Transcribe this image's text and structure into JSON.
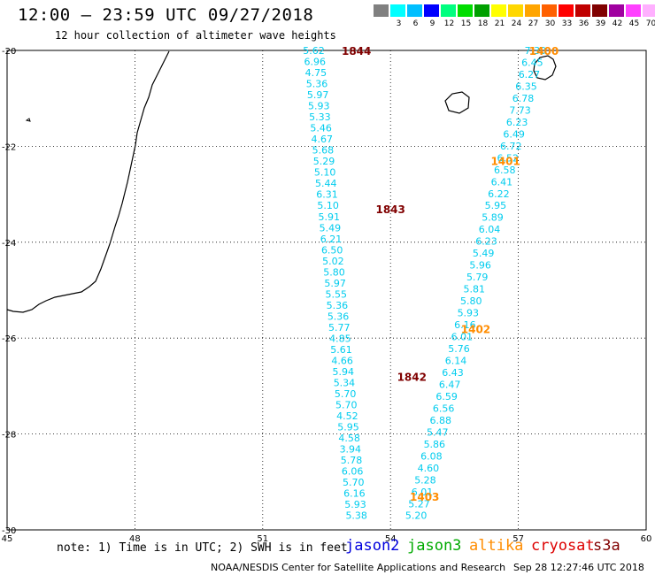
{
  "header": {
    "title": "12:00 – 23:59 UTC 09/27/2018",
    "subtitle": "12 hour collection of altimeter wave heights"
  },
  "legend": {
    "unit": "(ft)",
    "items": [
      {
        "label": "",
        "color": "#808080"
      },
      {
        "label": "3",
        "color": "#00ffff"
      },
      {
        "label": "6",
        "color": "#00bfff"
      },
      {
        "label": "9",
        "color": "#0000ff"
      },
      {
        "label": "12",
        "color": "#00ff7f"
      },
      {
        "label": "15",
        "color": "#00dd00"
      },
      {
        "label": "18",
        "color": "#00a000"
      },
      {
        "label": "21",
        "color": "#ffff00"
      },
      {
        "label": "24",
        "color": "#ffd700"
      },
      {
        "label": "27",
        "color": "#ffa500"
      },
      {
        "label": "30",
        "color": "#ff6000"
      },
      {
        "label": "33",
        "color": "#ff0000"
      },
      {
        "label": "36",
        "color": "#c00000"
      },
      {
        "label": "39",
        "color": "#800000"
      },
      {
        "label": "42",
        "color": "#a000a0"
      },
      {
        "label": "45",
        "color": "#ff40ff"
      },
      {
        "label": "70",
        "color": "#ffb0ff"
      },
      {
        "label": "",
        "color": "#000000"
      }
    ]
  },
  "map": {
    "lon_ticks": [
      "45",
      "48",
      "51",
      "54",
      "57",
      "60"
    ],
    "lat_ticks": [
      "-20",
      "-22",
      "-24",
      "-26",
      "-28",
      "-30"
    ],
    "lon_range": [
      45,
      60
    ],
    "lat_range": [
      -20,
      -30
    ]
  },
  "tracks": {
    "pass_a": {
      "lon_start": 52.2,
      "lat_start": -20.0,
      "lon_end": 53.2,
      "lat_end": -29.7,
      "values": [
        "5.62",
        "6.96",
        "4.75",
        "5.36",
        "5.97",
        "5.93",
        "5.33",
        "5.46",
        "4.67",
        "5.68",
        "5.29",
        "5.10",
        "5.44",
        "6.31",
        "5.10",
        "5.91",
        "5.49",
        "6.21",
        "6.50",
        "5.02",
        "5.80",
        "5.97",
        "5.55",
        "5.36",
        "5.36",
        "5.77",
        "4.85",
        "5.61",
        "4.66",
        "5.94",
        "5.34",
        "5.70",
        "5.70",
        "4.52",
        "5.95",
        "4.58",
        "3.94",
        "5.78",
        "6.06",
        "5.70",
        "6.16",
        "5.93",
        "5.38"
      ]
    },
    "pass_b": {
      "lon_start": 57.4,
      "lat_start": -20.0,
      "lon_end": 54.6,
      "lat_end": -29.7,
      "values": [
        "7.30",
        "6.45",
        "6.27",
        "6.35",
        "6.78",
        "7.73",
        "6.23",
        "6.49",
        "6.72",
        "6.52",
        "6.58",
        "6.41",
        "6.22",
        "5.95",
        "5.89",
        "6.04",
        "6.23",
        "5.49",
        "5.96",
        "5.79",
        "5.81",
        "5.80",
        "5.93",
        "6.16",
        "6.01",
        "5.76",
        "6.14",
        "6.43",
        "6.47",
        "6.59",
        "6.56",
        "6.88",
        "5.47",
        "5.86",
        "6.08",
        "4.60",
        "5.28",
        "6.01",
        "5.27",
        "5.20"
      ]
    },
    "time_labels": [
      {
        "text": "1844",
        "lon": 53.2,
        "lat": -20.0,
        "color": "#800000"
      },
      {
        "text": "1843",
        "lon": 54.0,
        "lat": -23.3,
        "color": "#800000"
      },
      {
        "text": "1842",
        "lon": 54.5,
        "lat": -26.8,
        "color": "#800000"
      },
      {
        "text": "1400",
        "lon": 57.6,
        "lat": -20.0,
        "color": "#ff8c00"
      },
      {
        "text": "1401",
        "lon": 56.7,
        "lat": -22.3,
        "color": "#ff8c00"
      },
      {
        "text": "1402",
        "lon": 56.0,
        "lat": -25.8,
        "color": "#ff8c00"
      },
      {
        "text": "1403",
        "lon": 54.8,
        "lat": -29.3,
        "color": "#ff8c00"
      }
    ]
  },
  "footer": {
    "note": "note: 1) Time is in UTC; 2) SWH is in feet",
    "satellites": [
      {
        "name": "jason2",
        "color": "#0000dd"
      },
      {
        "name": "jason3",
        "color": "#00aa00"
      },
      {
        "name": "altika",
        "color": "#ff8c00"
      },
      {
        "name": "cryosat",
        "color": "#dd0000"
      },
      {
        "name": "s3a",
        "color": "#800000"
      }
    ],
    "credit": "NOAA/NESDIS Center for Satellite Applications and Research",
    "timestamp": "Sep 28 12:27:46 UTC 2018"
  }
}
